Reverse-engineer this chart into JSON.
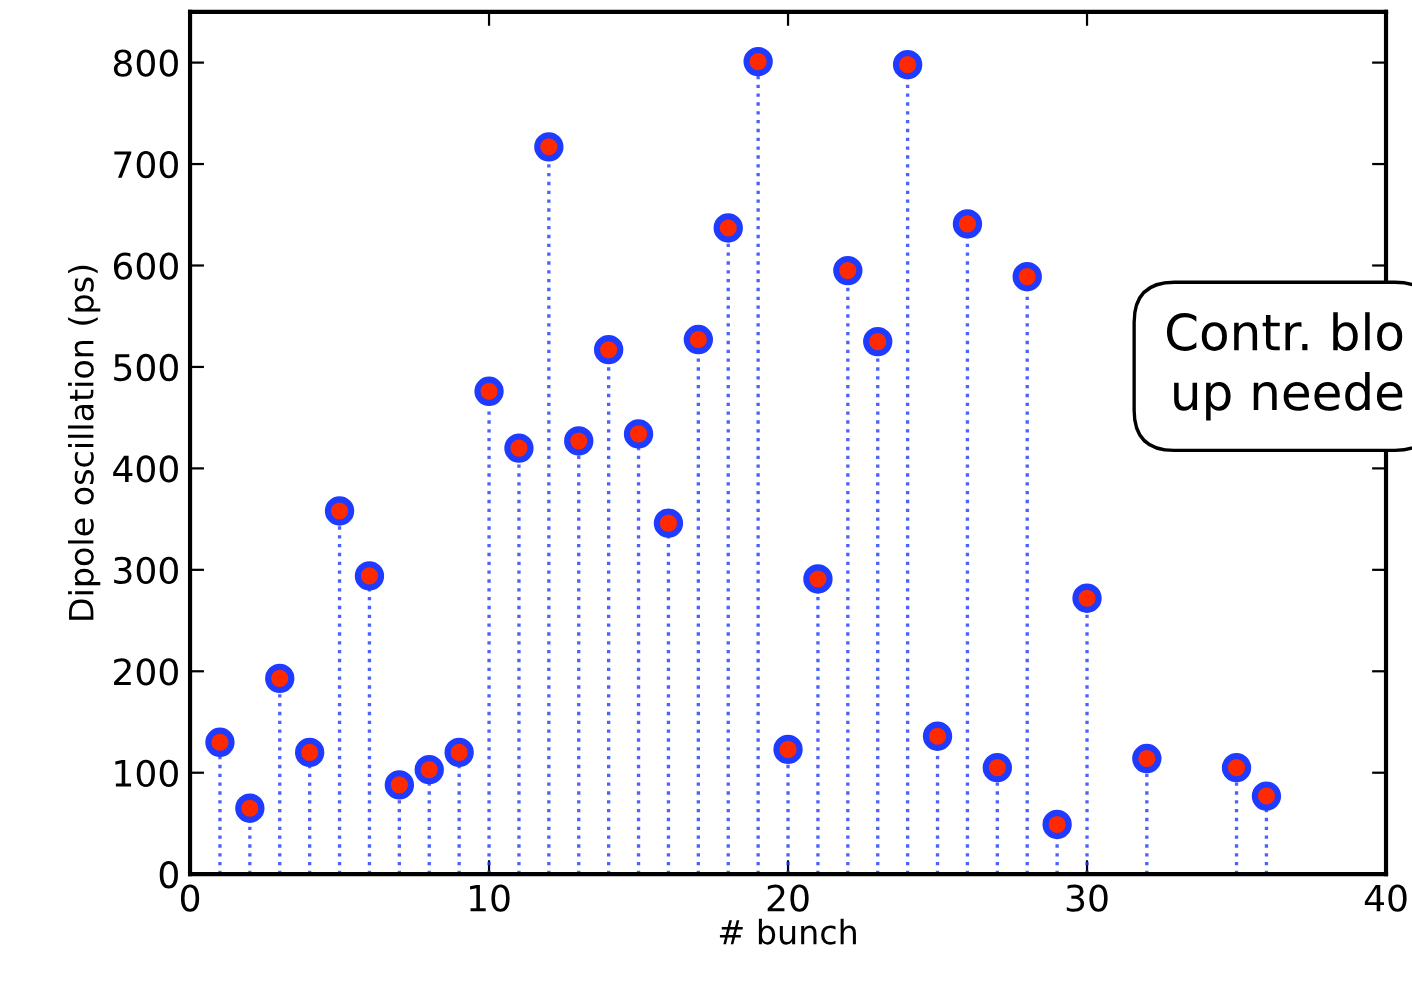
{
  "chart_data": {
    "type": "lollipop",
    "xlabel": "# bunch",
    "ylabel": "Dipole oscillation (ps)",
    "x": [
      1,
      2,
      3,
      4,
      5,
      6,
      7,
      8,
      9,
      10,
      11,
      12,
      13,
      14,
      15,
      16,
      17,
      18,
      19,
      20,
      21,
      22,
      23,
      24,
      25,
      26,
      27,
      28,
      29,
      30,
      31,
      32,
      33,
      34,
      35,
      36
    ],
    "series": [
      {
        "color": "#1f3bff",
        "values": [
          130,
          65,
          193,
          120,
          358,
          294,
          88,
          103,
          120,
          476,
          420,
          717,
          427,
          517,
          434,
          346,
          527,
          637,
          801,
          123,
          291,
          595,
          525,
          798,
          136,
          641,
          105,
          589,
          49,
          272,
          null,
          114,
          null,
          null,
          105,
          77
        ]
      }
    ],
    "marker": "circle",
    "line_style": "dotted",
    "xlim": [
      0,
      40
    ],
    "xticks": [
      0,
      10,
      20,
      30,
      40
    ],
    "ylim": [
      0,
      850
    ],
    "yticks": [
      0,
      100,
      200,
      300,
      400,
      500,
      600,
      700,
      800
    ],
    "grid": false,
    "legend": false,
    "annotations": [
      "Contr. blo\nup neede"
    ]
  }
}
